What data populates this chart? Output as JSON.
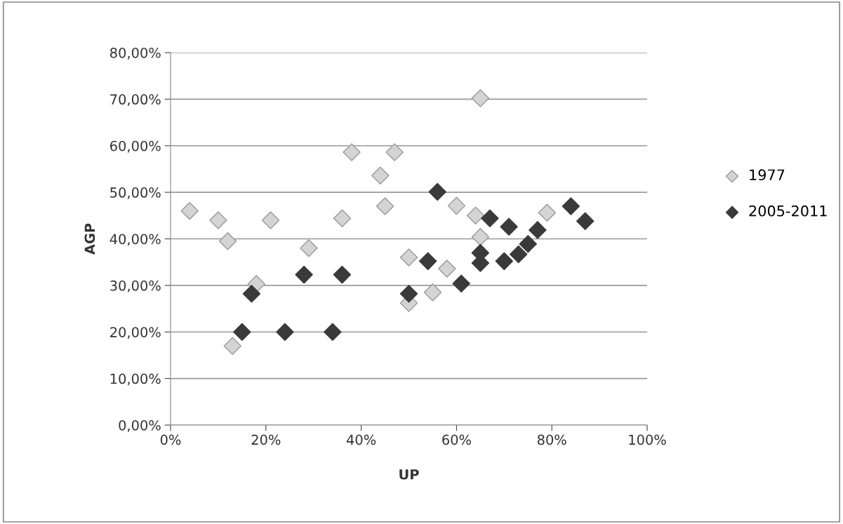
{
  "chart_data": {
    "type": "scatter",
    "xlabel": "UP",
    "ylabel": "AGP",
    "xlim": [
      0,
      100
    ],
    "ylim": [
      0,
      80
    ],
    "xticks": [
      {
        "value": 0,
        "label": "0%"
      },
      {
        "value": 20,
        "label": "20%"
      },
      {
        "value": 40,
        "label": "40%"
      },
      {
        "value": 60,
        "label": "60%"
      },
      {
        "value": 80,
        "label": "80%"
      },
      {
        "value": 100,
        "label": "100%"
      }
    ],
    "yticks": [
      {
        "value": 0,
        "label": "0,00%"
      },
      {
        "value": 10,
        "label": "10,00%"
      },
      {
        "value": 20,
        "label": "20,00%"
      },
      {
        "value": 30,
        "label": "30,00%"
      },
      {
        "value": 40,
        "label": "40,00%"
      },
      {
        "value": 50,
        "label": "50,00%"
      },
      {
        "value": 60,
        "label": "60,00%"
      },
      {
        "value": 70,
        "label": "70,00%"
      },
      {
        "value": 80,
        "label": "80,00%"
      }
    ],
    "grid": "y",
    "legend": "right",
    "marker": "diamond",
    "series": [
      {
        "name": "1977",
        "color": "#d4d4d4",
        "x": [
          4,
          10,
          12,
          13,
          18,
          21,
          29,
          36,
          38,
          44,
          45,
          47,
          50,
          50,
          55,
          58,
          60,
          64,
          65,
          65,
          79
        ],
        "values": [
          46,
          44,
          39.5,
          17,
          30.3,
          44,
          38,
          44.4,
          58.6,
          53.6,
          47,
          58.6,
          36,
          26.2,
          28.5,
          33.6,
          47.1,
          45,
          40.4,
          70.2,
          45.6
        ]
      },
      {
        "name": "2005-2011",
        "color": "#3a3a3a",
        "x": [
          15,
          17,
          24,
          28,
          34,
          36,
          50,
          54,
          56,
          61,
          64,
          65,
          65,
          67,
          70,
          71,
          73,
          75,
          77,
          84,
          87
        ],
        "values": [
          20,
          28.2,
          20,
          32.3,
          20,
          32.3,
          28.2,
          35.2,
          50.1,
          30.4,
          null,
          34.8,
          37,
          44.4,
          35.2,
          42.6,
          36.7,
          38.9,
          41.9,
          47,
          43.8
        ]
      }
    ]
  }
}
